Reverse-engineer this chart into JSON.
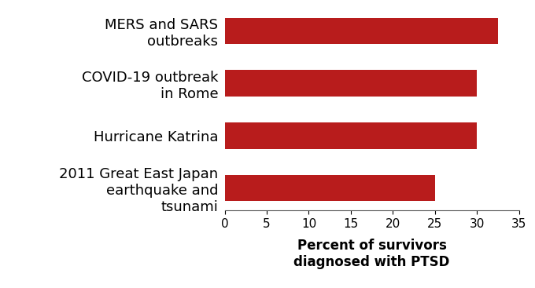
{
  "categories": [
    "2011 Great East Japan\nearthquake and\ntsunami",
    "Hurricane Katrina",
    "COVID-19 outbreak\nin Rome",
    "MERS and SARS\noutbreaks"
  ],
  "values": [
    25,
    30,
    30,
    32.5
  ],
  "bar_color": "#b81c1c",
  "xlim": [
    0,
    35
  ],
  "xticks": [
    0,
    5,
    10,
    15,
    20,
    25,
    30,
    35
  ],
  "xlabel": "Percent of survivors\ndiagnosed with PTSD",
  "xlabel_fontsize": 12,
  "tick_fontsize": 11,
  "label_fontsize": 13,
  "background_color": "#ffffff"
}
